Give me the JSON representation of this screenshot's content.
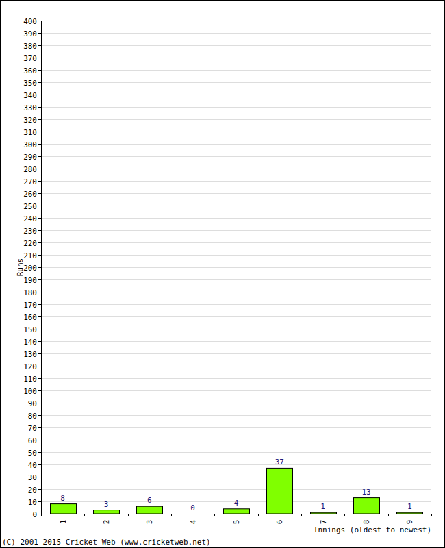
{
  "chart_data": {
    "type": "bar",
    "categories": [
      "1",
      "2",
      "3",
      "4",
      "5",
      "6",
      "7",
      "8",
      "9"
    ],
    "values": [
      8,
      3,
      6,
      0,
      4,
      37,
      1,
      13,
      1
    ],
    "color": "#80ff00",
    "ylim": [
      0,
      400
    ],
    "yticks": [
      0,
      10,
      20,
      30,
      40,
      50,
      60,
      70,
      80,
      90,
      100,
      110,
      120,
      130,
      140,
      150,
      160,
      170,
      180,
      190,
      200,
      210,
      220,
      230,
      240,
      250,
      260,
      270,
      280,
      290,
      300,
      310,
      320,
      330,
      340,
      350,
      360,
      370,
      380,
      390,
      400
    ],
    "grid": true,
    "data_labels": true,
    "x_label": "Innings (oldest to newest)",
    "y_label": "Runs",
    "annotations": [
      "(C) 2001-2015 Cricket Web (www.cricketweb.net)"
    ]
  }
}
